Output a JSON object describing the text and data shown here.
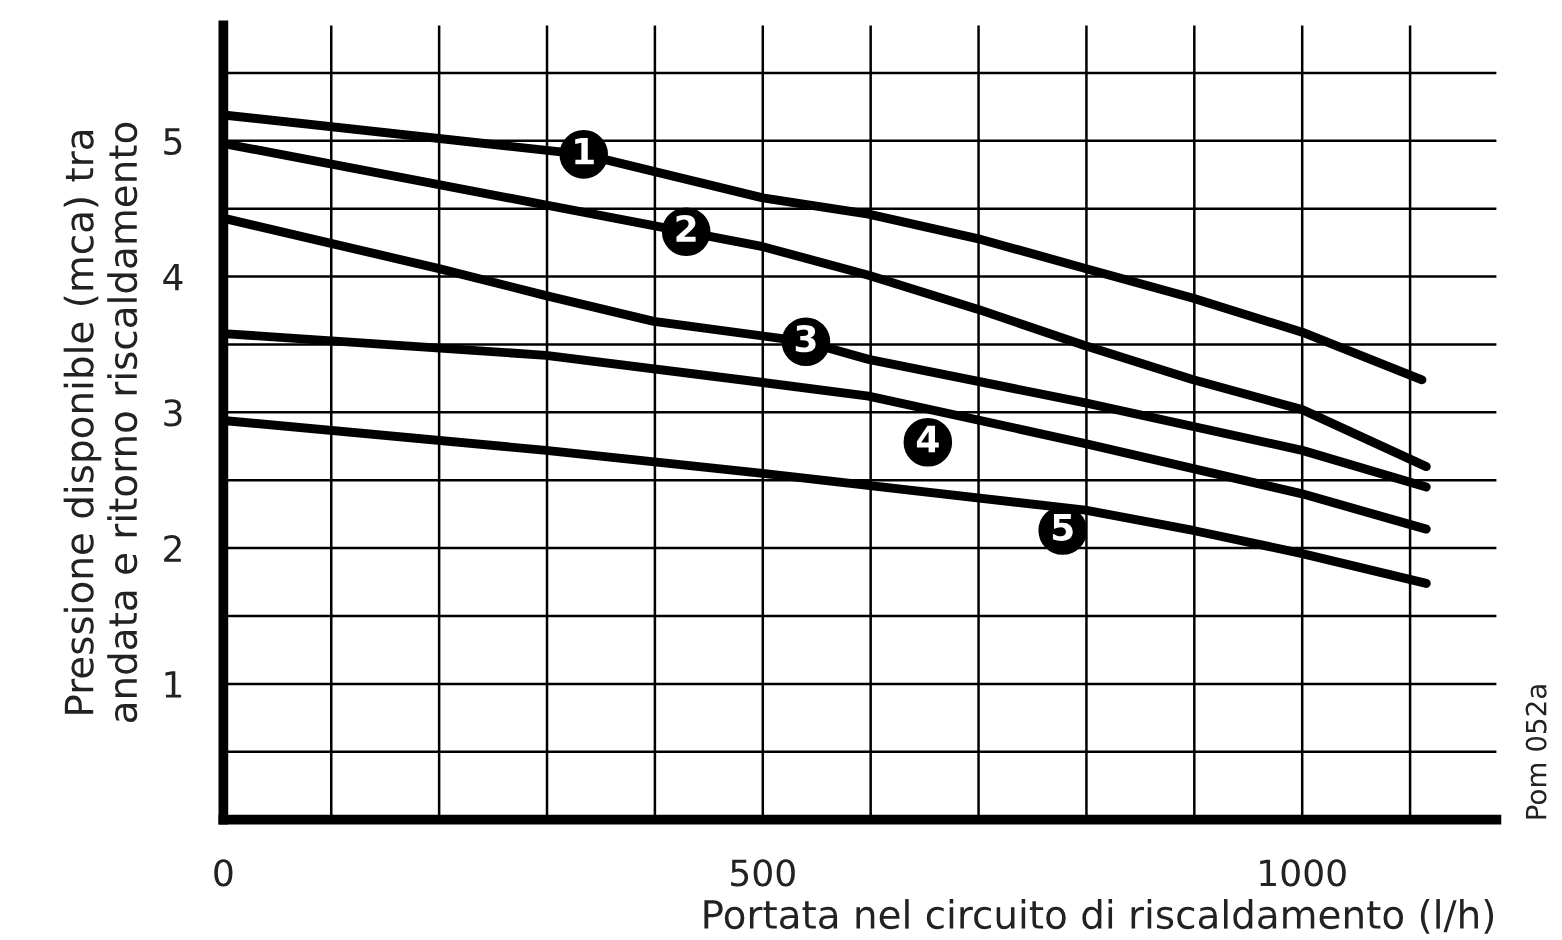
{
  "chart_data": {
    "type": "line",
    "xlabel": "Portata nel circuito di riscaldamento (l/h)",
    "ylabel": "Pressione disponible (mca) tra\nandata e ritorno riscaldamento",
    "xlim": [
      0,
      1180
    ],
    "ylim": [
      0,
      5.85
    ],
    "xticks": [
      0,
      {
        "value": 100,
        "label": null
      },
      {
        "value": 200,
        "label": null
      },
      {
        "value": 300,
        "label": null
      },
      {
        "value": 400,
        "label": null
      },
      500,
      {
        "value": 600,
        "label": null
      },
      {
        "value": 700,
        "label": null
      },
      {
        "value": 800,
        "label": null
      },
      {
        "value": 900,
        "label": null
      },
      1000,
      {
        "value": 1100,
        "label": null
      }
    ],
    "yticks": [
      {
        "value": 0.5,
        "label": null
      },
      1,
      {
        "value": 1.5,
        "label": null
      },
      2,
      {
        "value": 2.5,
        "label": null
      },
      3,
      {
        "value": 3.5,
        "label": null
      },
      4,
      {
        "value": 4.5,
        "label": null
      },
      5,
      {
        "value": 5.5,
        "label": null
      }
    ],
    "grid": true,
    "marker": "none",
    "line_style": "solid",
    "series": [
      {
        "color": "#000000",
        "x": [
          0,
          334,
          500,
          598,
          699,
          799,
          899,
          1000,
          1111
        ],
        "values": [
          5.19,
          4.9,
          4.58,
          4.46,
          4.28,
          4.06,
          3.84,
          3.59,
          3.24
        ]
      },
      {
        "color": "#000000",
        "x": [
          0,
          429,
          500,
          598,
          699,
          799,
          899,
          1000,
          1115
        ],
        "values": [
          4.98,
          4.33,
          4.22,
          4.01,
          3.76,
          3.49,
          3.24,
          3.02,
          2.6
        ]
      },
      {
        "color": "#000000",
        "x": [
          0,
          199,
          299,
          399,
          540,
          598,
          799,
          1000,
          1115
        ],
        "values": [
          4.43,
          4.06,
          3.86,
          3.67,
          3.52,
          3.39,
          3.07,
          2.72,
          2.45
        ]
      },
      {
        "color": "#000000",
        "x": [
          0,
          299,
          500,
          598,
          799,
          1000,
          1115
        ],
        "values": [
          3.58,
          3.42,
          3.22,
          3.12,
          2.77,
          2.4,
          2.14
        ]
      },
      {
        "color": "#000000",
        "x": [
          0,
          299,
          500,
          799,
          899,
          1000,
          1115
        ],
        "values": [
          2.94,
          2.72,
          2.55,
          2.28,
          2.13,
          1.96,
          1.74
        ]
      }
    ],
    "annotations": [
      {
        "text": "1",
        "x": 334,
        "y": 4.9
      },
      {
        "text": "2",
        "x": 429,
        "y": 4.33
      },
      {
        "text": "3",
        "x": 540,
        "y": 3.52
      },
      {
        "text": "4",
        "x": 653,
        "y": 2.78
      },
      {
        "text": "5",
        "x": 778,
        "y": 2.13
      },
      "Pom 052a"
    ]
  }
}
